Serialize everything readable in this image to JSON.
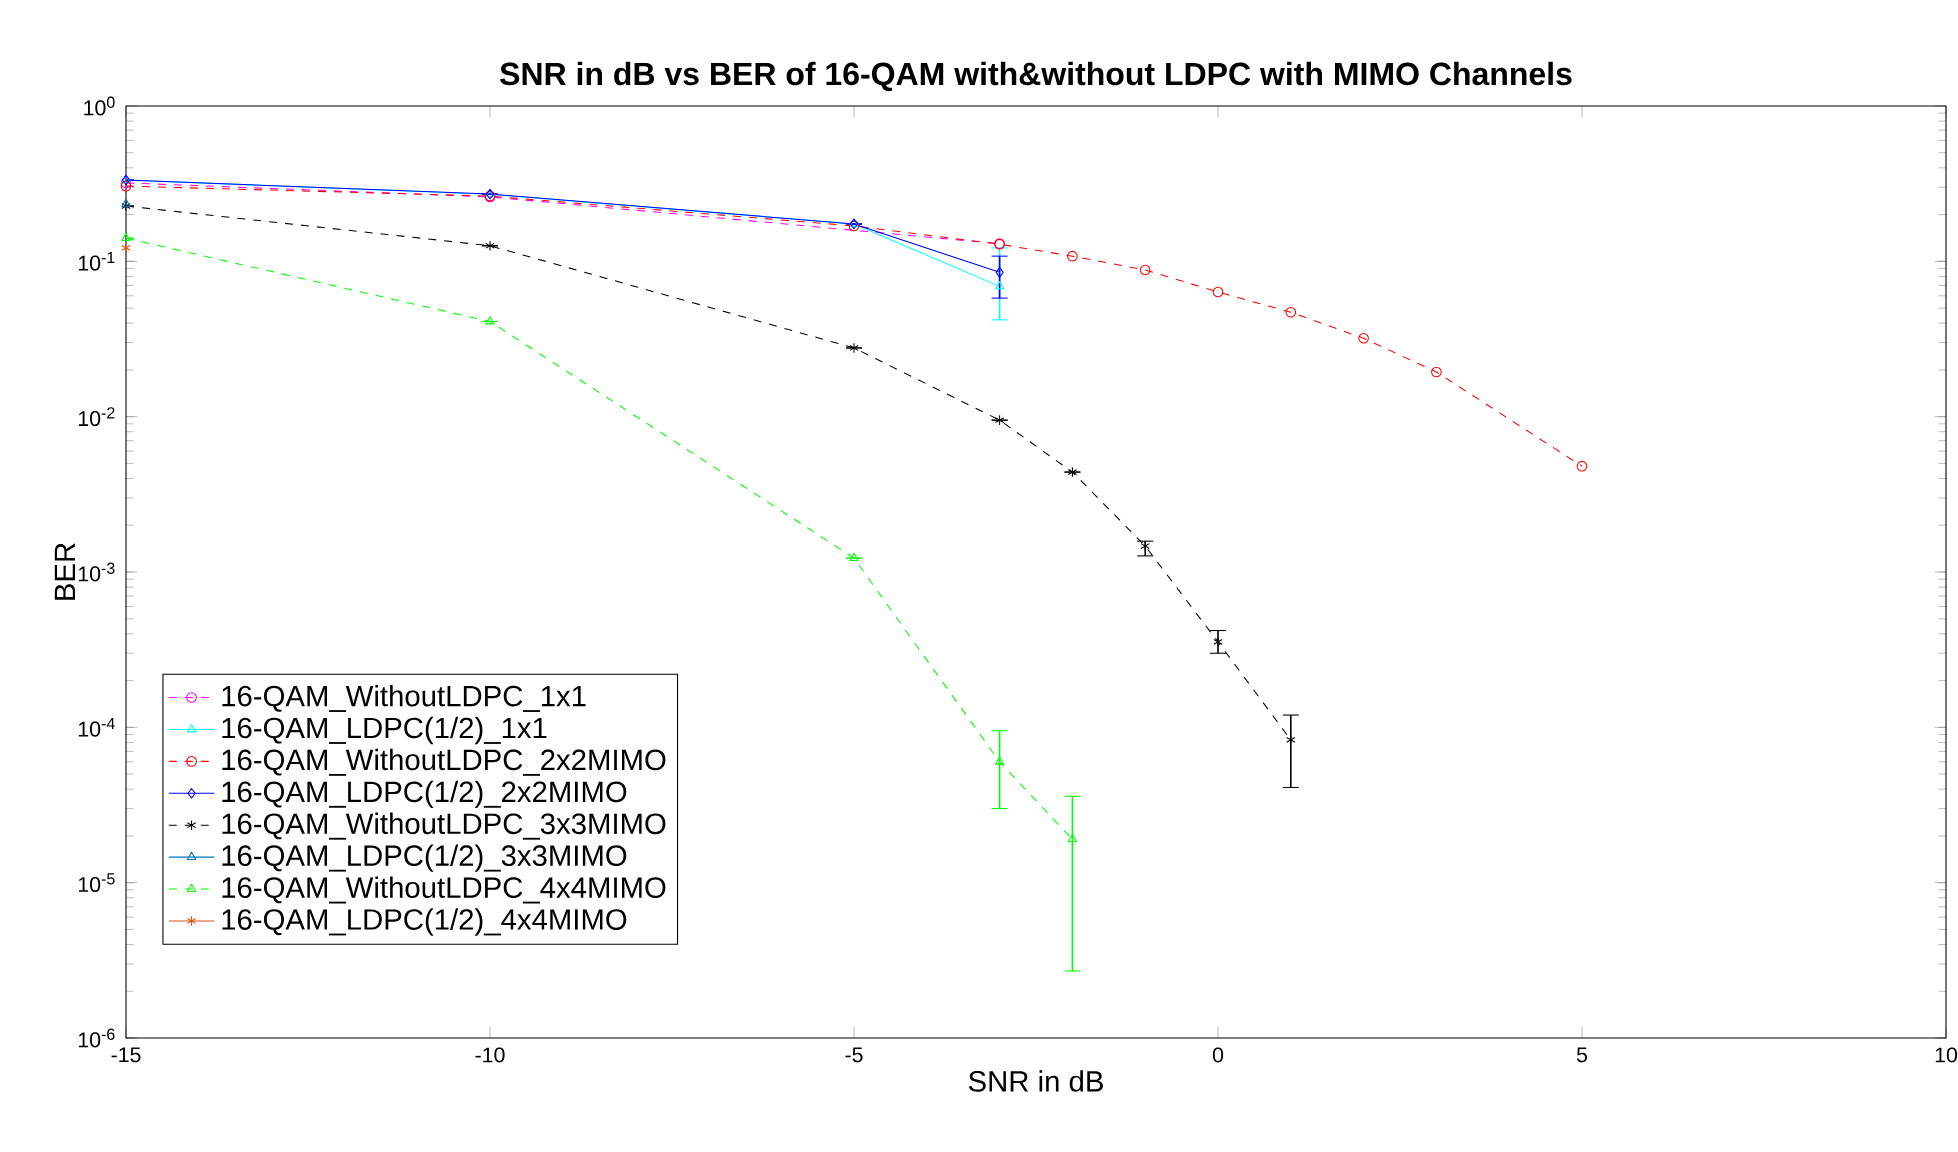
{
  "chart_data": {
    "type": "line",
    "title": "SNR in dB vs BER of  16-QAM with&without LDPC with MIMO Channels",
    "xlabel": "SNR in dB",
    "ylabel": "BER",
    "log": "y",
    "xlim": [
      -15,
      10
    ],
    "xticks": [
      -15,
      -10,
      -5,
      0,
      5,
      10
    ],
    "ylim": [
      1e-06,
      1
    ],
    "yticks": [
      {
        "value": 1e-06,
        "label": "10$^{-6}$"
      },
      {
        "value": 1e-05,
        "label": "10$^{-5}$"
      },
      {
        "value": 0.0001,
        "label": "10$^{-4}$"
      },
      {
        "value": 0.001,
        "label": "10$^{-3}$"
      },
      {
        "value": 0.01,
        "label": "10$^{-2}$"
      },
      {
        "value": 0.1,
        "label": "10$^{-1}$"
      },
      {
        "value": 1,
        "label": "10$^{0}$"
      }
    ],
    "grid": false,
    "legend": "bottom left",
    "series": [
      {
        "name": "16-QAM_WithoutLDPC_1x1",
        "color": "#ff00ff",
        "marker": "circle",
        "line_style": "dashed",
        "x": [
          -15,
          -10,
          -5,
          -3
        ],
        "values": [
          0.32,
          0.26,
          null,
          0.13
        ]
      },
      {
        "name": "16-QAM_LDPC(1/2)_1x1",
        "color": "#00ffff",
        "marker": "triangle",
        "line_style": "solid",
        "x": [
          -15,
          -10,
          -5,
          -3
        ],
        "values": [
          0.334,
          0.27,
          0.174,
          0.069
        ],
        "errors": [
          null,
          null,
          null,
          [
            0.042,
            0.122
          ]
        ]
      },
      {
        "name": "16-QAM_WithoutLDPC_2x2MIMO",
        "color": "#ff0000",
        "marker": "circle",
        "line_style": "dashed",
        "x": [
          -15,
          -10,
          -5,
          -3,
          -2,
          -1,
          0,
          1,
          2,
          3,
          5
        ],
        "values": [
          0.305,
          0.263,
          0.169,
          0.129,
          0.108,
          0.088,
          0.0635,
          0.047,
          0.032,
          0.0194,
          0.0048
        ]
      },
      {
        "name": "16-QAM_LDPC(1/2)_2x2MIMO",
        "color": "#0000ff",
        "marker": "diamond",
        "line_style": "solid",
        "x": [
          -15,
          -10,
          -5,
          -3
        ],
        "values": [
          0.334,
          0.271,
          0.174,
          0.085
        ],
        "errors": [
          null,
          null,
          null,
          [
            0.058,
            0.108
          ]
        ]
      },
      {
        "name": "16-QAM_WithoutLDPC_3x3MIMO",
        "color": "#000000",
        "marker": "cross",
        "line_style": "dashed",
        "x": [
          -15,
          -10,
          -5,
          -3,
          -2,
          -1,
          0,
          1
        ],
        "values": [
          0.227,
          0.126,
          0.0277,
          0.0095,
          0.0044,
          0.00147,
          0.000355,
          8.3e-05
        ],
        "errors": [
          null,
          null,
          null,
          null,
          null,
          [
            0.00127,
            0.00158
          ],
          [
            0.0003,
            0.00042
          ],
          [
            4.1e-05,
            0.00012
          ]
        ]
      },
      {
        "name": "16-QAM_LDPC(1/2)_3x3MIMO",
        "color": "#0072bd",
        "marker": "triangle",
        "line_style": "solid",
        "x": [
          -15
        ],
        "values": [
          0.234
        ]
      },
      {
        "name": "16-QAM_WithoutLDPC_4x4MIMO",
        "color": "#00ff00",
        "marker": "triangle",
        "line_style": "dashed",
        "x": [
          -15,
          -10,
          -5,
          -3,
          -2
        ],
        "values": [
          0.141,
          0.041,
          0.00123,
          6e-05,
          1.9e-05
        ],
        "errors": [
          null,
          null,
          null,
          [
            3e-05,
            9.5e-05
          ],
          [
            2.7e-06,
            3.6e-05
          ]
        ]
      },
      {
        "name": "16-QAM_LDPC(1/2)_4x4MIMO",
        "color": "#d95319",
        "marker": "cross",
        "line_style": "solid",
        "x": [
          -15
        ],
        "values": [
          0.122
        ]
      }
    ]
  }
}
